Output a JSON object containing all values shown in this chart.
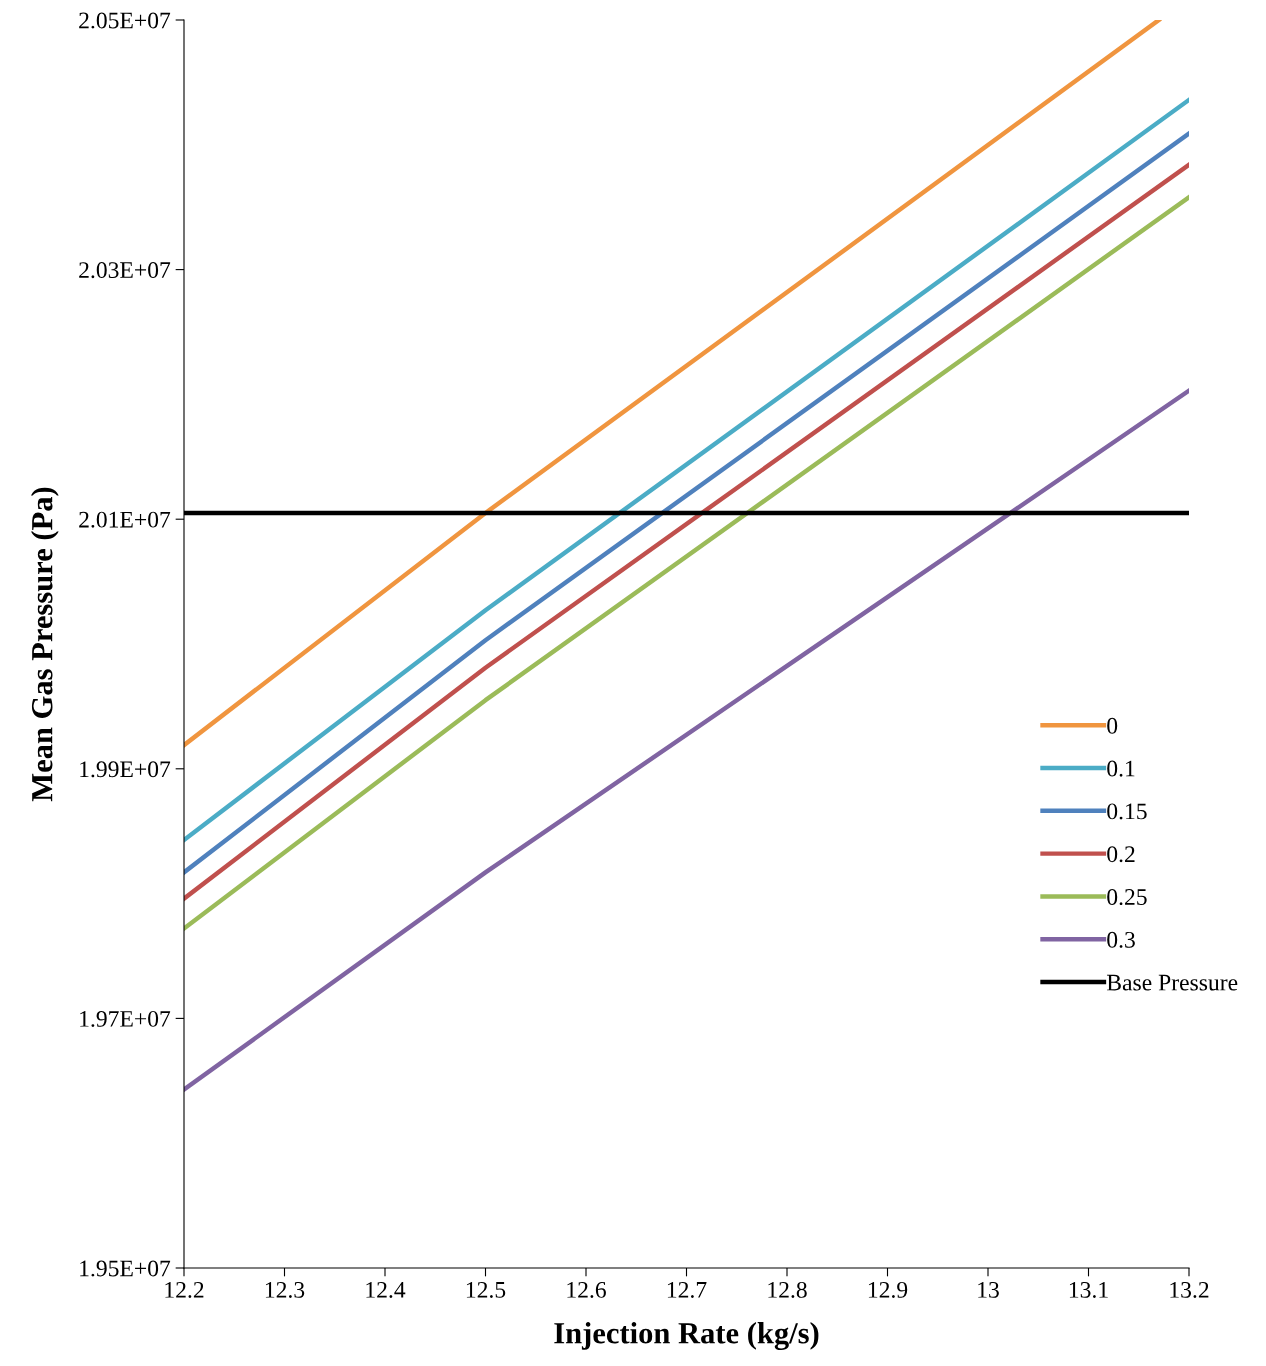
{
  "chart_data": {
    "type": "line",
    "xlabel": "Injection Rate (kg/s)",
    "ylabel": "Mean Gas Pressure (Pa)",
    "xlim": [
      12.2,
      13.2
    ],
    "xticks": [
      12.2,
      12.3,
      12.4,
      12.5,
      12.6,
      12.7,
      12.8,
      12.9,
      13,
      13.1,
      13.2
    ],
    "ylim": [
      19500000,
      20500000
    ],
    "yticks": [
      {
        "value": 19500000,
        "label": "1.95E+07"
      },
      {
        "value": 19700000,
        "label": "1.97E+07"
      },
      {
        "value": 19900000,
        "label": "1.99E+07"
      },
      {
        "value": 20100000,
        "label": "2.01E+07"
      },
      {
        "value": 20300000,
        "label": "2.03E+07"
      },
      {
        "value": 20500000,
        "label": "2.05E+07"
      }
    ],
    "grid": false,
    "legend": "right",
    "marker": "none",
    "line_style": "solid",
    "series": [
      {
        "name": "0",
        "color": "#f0953f",
        "x": [
          12.2,
          12.5,
          13.17
        ],
        "values": [
          19919000,
          20105000,
          20500000
        ]
      },
      {
        "name": "0.1",
        "color": "#4bacc6",
        "x": [
          12.2,
          12.5,
          13.2
        ],
        "values": [
          19843000,
          20027000,
          20436000
        ]
      },
      {
        "name": "0.15",
        "color": "#4f81bd",
        "x": [
          12.2,
          12.5,
          13.2
        ],
        "values": [
          19817000,
          20003000,
          20409000
        ]
      },
      {
        "name": "0.2",
        "color": "#c0504d",
        "x": [
          12.2,
          12.5,
          13.2
        ],
        "values": [
          19796000,
          19981000,
          20384000
        ]
      },
      {
        "name": "0.25",
        "color": "#9bbb59",
        "x": [
          12.2,
          12.5,
          13.2
        ],
        "values": [
          19772000,
          19955000,
          20358000
        ]
      },
      {
        "name": "0.3",
        "color": "#8064a2",
        "x": [
          12.2,
          12.5,
          13.2
        ],
        "values": [
          19643000,
          19817000,
          20203000
        ]
      },
      {
        "name": "Base Pressure",
        "color": "#000000",
        "x": [
          12.2,
          13.2
        ],
        "values": [
          20105000,
          20105000
        ]
      }
    ]
  }
}
